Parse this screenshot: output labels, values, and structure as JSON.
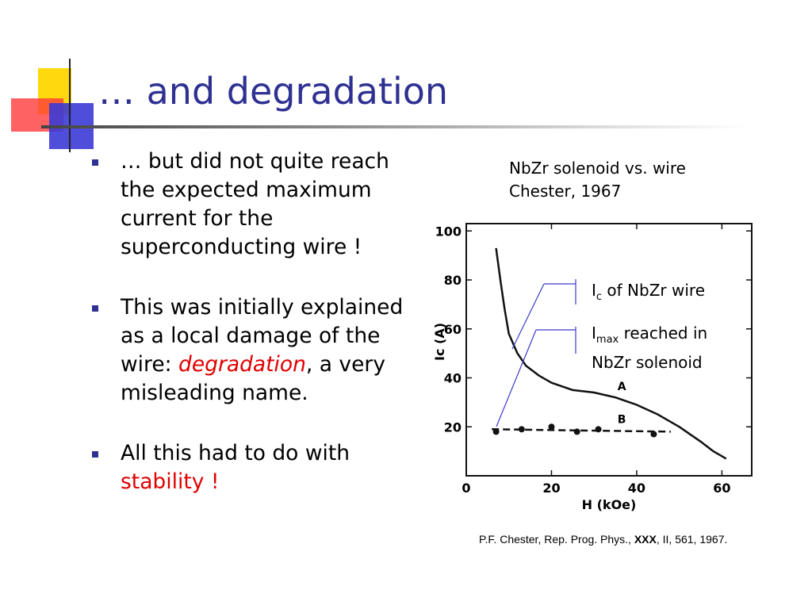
{
  "slide": {
    "title": "… and degradation",
    "bullets": [
      {
        "parts": [
          {
            "text": "… but did not quite reach the expected maximum current for the superconducting wire !",
            "style": "normal"
          }
        ]
      },
      {
        "parts": [
          {
            "text": "This was initially explained as a local damage of the wire: ",
            "style": "normal"
          },
          {
            "text": "degradation",
            "style": "red-italic"
          },
          {
            "text": ", a very misleading name.",
            "style": "normal"
          }
        ]
      },
      {
        "parts": [
          {
            "text": "All this had to do with ",
            "style": "normal"
          },
          {
            "text": "stability !",
            "style": "red"
          }
        ]
      }
    ]
  },
  "figure": {
    "caption_line1": "NbZr solenoid vs. wire",
    "caption_line2": "Chester, 1967",
    "callouts": [
      {
        "symbol": "I",
        "sub": "c",
        "text": " of NbZr wire"
      },
      {
        "symbol": "I",
        "sub": "max",
        "text": " reached in",
        "text2": "NbZr solenoid"
      }
    ],
    "citation": {
      "pre": "P.F. Chester, Rep. Prog. Phys., ",
      "bold": "XXX",
      "post": ", II, 561, 1967."
    }
  },
  "chart_data": {
    "type": "line",
    "xlabel": "H (kOe)",
    "ylabel": "Ic (A)",
    "xlim": [
      0,
      67
    ],
    "ylim": [
      0,
      103
    ],
    "x_ticks": [
      0,
      20,
      40,
      60
    ],
    "y_ticks": [
      20,
      40,
      60,
      80,
      100
    ],
    "series": [
      {
        "name": "A",
        "style": "solid",
        "x": [
          7,
          8,
          9,
          10,
          12,
          14,
          17,
          20,
          25,
          30,
          35,
          40,
          45,
          50,
          55,
          58,
          61
        ],
        "y": [
          93,
          80,
          68,
          58,
          50,
          45,
          41,
          38,
          35,
          34,
          32,
          29,
          25,
          20,
          14,
          10,
          7
        ]
      },
      {
        "name": "B",
        "style": "dashed",
        "x": [
          6,
          48
        ],
        "y": [
          19,
          18
        ]
      }
    ],
    "points": {
      "x": [
        7,
        13,
        20,
        26,
        31,
        44
      ],
      "y": [
        18,
        19,
        20,
        18,
        19,
        17
      ]
    },
    "colors": {
      "title": "#2e3192",
      "emphasis": "#e00000",
      "callout_line": "#3b3bcc"
    }
  }
}
